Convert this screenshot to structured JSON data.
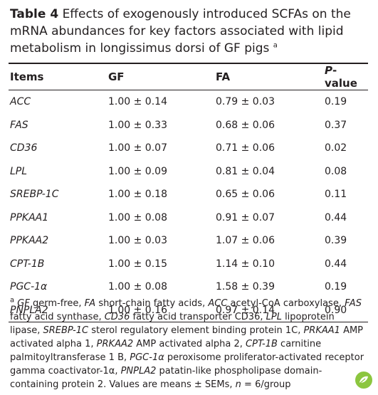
{
  "title": {
    "label": "Table 4",
    "text": "Effects of exogenously introduced SCFAs on the mRNA abundances for key factors associated with lipid metabolism in longissimus dorsi of GF pigs",
    "marker": "a"
  },
  "table": {
    "header": [
      {
        "text": "Items"
      },
      {
        "text": "GF"
      },
      {
        "text": "FA"
      },
      {
        "italic": "P",
        "text": "-value"
      }
    ],
    "rows": [
      [
        "ACC",
        "1.00 ± 0.14",
        "0.79 ± 0.03",
        "0.19"
      ],
      [
        "FAS",
        "1.00 ± 0.33",
        "0.68 ± 0.06",
        "0.37"
      ],
      [
        "CD36",
        "1.00 ± 0.07",
        "0.71 ± 0.06",
        "0.02"
      ],
      [
        "LPL",
        "1.00 ± 0.09",
        "0.81 ± 0.04",
        "0.08"
      ],
      [
        "SREBP-1C",
        "1.00 ± 0.18",
        "0.65 ± 0.06",
        "0.11"
      ],
      [
        "PPKAA1",
        "1.00 ± 0.08",
        "0.91 ± 0.07",
        "0.44"
      ],
      [
        "PPKAA2",
        "1.00 ± 0.03",
        "1.07 ± 0.06",
        "0.39"
      ],
      [
        "CPT-1B",
        "1.00 ± 0.15",
        "1.14 ± 0.10",
        "0.44"
      ],
      [
        "PGC-1α",
        "1.00 ± 0.08",
        "1.58 ± 0.39",
        "0.19"
      ],
      [
        "PNPLA2",
        "1.00 ± 0.16",
        "0.97 ± 0.14",
        "0.90"
      ]
    ]
  },
  "footnote": {
    "marker": "a",
    "segments": [
      {
        "italic": true,
        "text": "GF"
      },
      {
        "text": " germ-free, "
      },
      {
        "italic": true,
        "text": "FA"
      },
      {
        "text": " short-chain fatty acids, "
      },
      {
        "italic": true,
        "text": "ACC"
      },
      {
        "text": " acetyl-CoA carboxylase, "
      },
      {
        "italic": true,
        "text": "FAS"
      },
      {
        "text": " fatty acid synthase, "
      },
      {
        "italic": true,
        "text": "CD36"
      },
      {
        "text": " fatty acid transporter CD36, "
      },
      {
        "italic": true,
        "text": "LPL"
      },
      {
        "text": " lipoprotein lipase, "
      },
      {
        "italic": true,
        "text": "SREBP-1C"
      },
      {
        "text": " sterol regulatory element binding protein 1C, "
      },
      {
        "italic": true,
        "text": "PRKAA1"
      },
      {
        "text": " AMP activated alpha 1, "
      },
      {
        "italic": true,
        "text": "PRKAA2"
      },
      {
        "text": " AMP activated alpha 2, "
      },
      {
        "italic": true,
        "text": "CPT-1B"
      },
      {
        "text": " carnitine palmitoyltransferase 1 B, "
      },
      {
        "italic": true,
        "text": "PGC-1α"
      },
      {
        "text": " peroxisome proliferator-activated receptor gamma coactivator-1α, "
      },
      {
        "italic": true,
        "text": "PNPLA2"
      },
      {
        "text": " patatin-like phospholipase domain-containing protein 2. Values are means ± SEMs, "
      },
      {
        "italic": true,
        "text": "n"
      },
      {
        "text": " = 6/group"
      }
    ]
  }
}
